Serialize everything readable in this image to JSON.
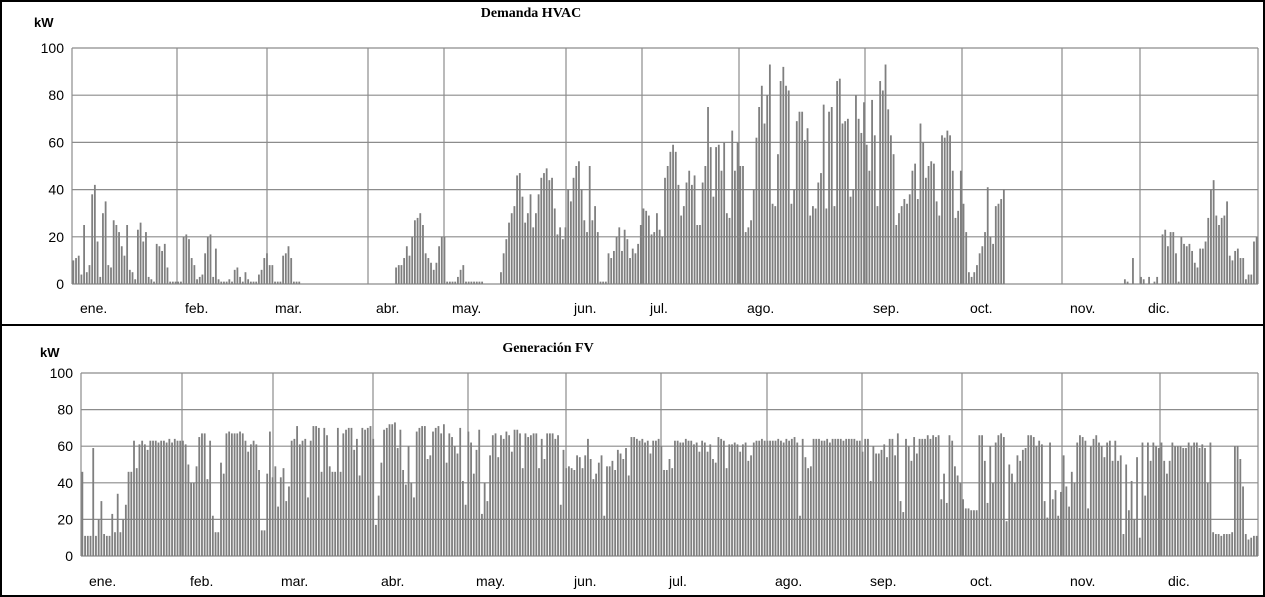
{
  "chart_data": [
    {
      "type": "bar",
      "title": "Demanda HVAC",
      "ylabel": "kW",
      "xlabel": "",
      "ylim": [
        0,
        100
      ],
      "yticks": [
        0,
        20,
        40,
        60,
        80,
        100
      ],
      "months": [
        "ene.",
        "feb.",
        "mar.",
        "abr.",
        "may.",
        "jun.",
        "jul.",
        "ago.",
        "sep.",
        "oct.",
        "nov.",
        "dic."
      ],
      "grid": true,
      "bar_color": "#7f7f7f",
      "x_unit": "day of year (1-365)",
      "values": [
        10,
        11,
        12,
        4,
        25,
        5,
        8,
        38,
        42,
        18,
        3,
        30,
        35,
        8,
        7,
        27,
        25,
        22,
        16,
        12,
        25,
        6,
        5,
        2,
        23,
        26,
        18,
        22,
        3,
        2,
        1,
        17,
        16,
        14,
        17,
        7,
        1,
        1,
        1,
        1,
        1,
        20,
        21,
        19,
        11,
        8,
        2,
        3,
        4,
        13,
        20,
        21,
        3,
        15,
        2,
        1,
        1,
        1,
        2,
        1,
        6,
        7,
        3,
        1,
        5,
        2,
        1,
        1,
        1,
        4,
        6,
        11,
        13,
        8,
        8,
        1,
        1,
        1,
        12,
        13,
        16,
        11,
        1,
        1,
        1,
        0,
        0,
        0,
        0,
        0,
        0,
        0,
        0,
        0,
        0,
        0,
        0,
        0,
        0,
        0,
        0,
        0,
        0,
        0,
        0,
        0,
        0,
        0,
        0,
        0,
        0,
        0,
        0,
        0,
        0,
        0,
        0,
        0,
        0,
        0,
        7,
        8,
        8,
        11,
        16,
        12,
        20,
        27,
        28,
        30,
        25,
        13,
        11,
        9,
        6,
        9,
        16,
        20,
        20,
        1,
        1,
        1,
        1,
        3,
        6,
        8,
        1,
        1,
        1,
        1,
        1,
        1,
        1,
        0,
        0,
        0,
        0,
        0,
        0,
        5,
        13,
        19,
        26,
        30,
        33,
        46,
        47,
        37,
        26,
        30,
        38,
        24,
        30,
        38,
        45,
        47,
        49,
        44,
        45,
        32,
        21,
        24,
        19,
        24,
        40,
        35,
        45,
        50,
        52,
        40,
        27,
        22,
        50,
        27,
        33,
        22,
        1,
        1,
        1,
        13,
        11,
        14,
        20,
        24,
        14,
        23,
        19,
        11,
        15,
        13,
        17,
        25,
        32,
        31,
        29,
        21,
        22,
        30,
        23,
        20,
        45,
        50,
        56,
        59,
        56,
        42,
        29,
        33,
        43,
        48,
        42,
        46,
        25,
        25,
        43,
        50,
        75,
        58,
        37,
        58,
        59,
        48,
        60,
        30,
        28,
        65,
        48,
        60,
        50,
        50,
        22,
        24,
        27,
        40,
        62,
        75,
        84,
        68,
        80,
        93,
        34,
        33,
        55,
        86,
        92,
        84,
        82,
        34,
        40,
        69,
        73,
        73,
        61,
        66,
        29,
        33,
        32,
        43,
        47,
        76,
        32,
        73,
        75,
        33,
        86,
        87,
        68,
        69,
        70,
        37,
        40,
        80,
        70,
        64,
        77,
        59,
        48,
        78,
        63,
        33,
        86,
        82,
        93,
        74,
        63,
        55,
        25,
        30,
        33,
        36,
        34,
        38,
        48,
        51,
        36,
        68,
        60,
        45,
        50,
        52,
        51,
        35,
        29,
        63,
        62,
        65,
        63,
        48,
        28,
        31,
        48,
        34,
        22,
        5,
        3,
        5,
        8,
        13,
        16,
        22,
        41,
        20,
        17,
        33,
        34,
        36,
        40,
        0,
        0,
        0,
        0,
        0,
        0,
        0,
        0,
        0,
        0,
        0,
        0,
        0,
        0,
        0,
        0,
        0,
        0,
        0,
        0,
        0,
        0,
        0,
        0,
        0,
        0,
        0,
        0,
        0,
        0,
        0,
        0,
        0,
        0,
        0,
        0,
        0,
        0,
        0,
        0,
        0,
        0,
        0,
        0,
        2,
        1,
        0,
        11,
        0,
        0,
        3,
        2,
        0,
        3,
        0,
        1,
        3,
        0,
        21,
        23,
        16,
        22,
        22,
        13,
        1,
        20,
        17,
        16,
        17,
        14,
        9,
        7,
        15,
        15,
        18,
        28,
        40,
        44,
        29,
        25,
        28,
        29,
        35,
        12,
        10,
        14,
        15,
        11,
        11,
        2,
        4,
        4,
        18,
        20
      ]
    },
    {
      "type": "bar",
      "title": "Generación FV",
      "ylabel": "kW",
      "xlabel": "",
      "ylim": [
        0,
        100
      ],
      "yticks": [
        0,
        20,
        40,
        60,
        80,
        100
      ],
      "months": [
        "ene.",
        "feb.",
        "mar.",
        "abr.",
        "may.",
        "jun.",
        "jul.",
        "ago.",
        "sep.",
        "oct.",
        "nov.",
        "dic."
      ],
      "grid": true,
      "bar_color": "#7f7f7f",
      "x_unit": "day of year (1-365)",
      "values": [
        46,
        11,
        11,
        11,
        59,
        11,
        20,
        30,
        12,
        11,
        11,
        23,
        13,
        34,
        13,
        20,
        28,
        46,
        46,
        63,
        48,
        61,
        63,
        61,
        58,
        63,
        63,
        63,
        62,
        63,
        63,
        62,
        64,
        62,
        64,
        63,
        63,
        63,
        61,
        50,
        40,
        40,
        49,
        65,
        67,
        67,
        42,
        63,
        22,
        13,
        13,
        51,
        45,
        67,
        68,
        67,
        67,
        67,
        68,
        67,
        63,
        57,
        61,
        63,
        61,
        47,
        14,
        14,
        45,
        68,
        43,
        49,
        27,
        43,
        48,
        30,
        38,
        63,
        64,
        71,
        61,
        63,
        64,
        32,
        63,
        71,
        71,
        70,
        46,
        70,
        66,
        49,
        46,
        46,
        70,
        46,
        67,
        69,
        70,
        70,
        58,
        64,
        44,
        70,
        69,
        70,
        71,
        64,
        17,
        33,
        51,
        69,
        70,
        72,
        72,
        73,
        59,
        69,
        47,
        39,
        60,
        40,
        32,
        68,
        70,
        71,
        71,
        53,
        55,
        68,
        70,
        71,
        67,
        72,
        51,
        67,
        65,
        60,
        56,
        70,
        41,
        28,
        68,
        62,
        45,
        58,
        69,
        23,
        40,
        30,
        55,
        66,
        67,
        54,
        66,
        64,
        68,
        66,
        57,
        69,
        69,
        67,
        48,
        67,
        65,
        66,
        67,
        67,
        48,
        64,
        53,
        67,
        67,
        67,
        64,
        66,
        28,
        58,
        48,
        49,
        48,
        47,
        55,
        54,
        48,
        55,
        64,
        53,
        42,
        45,
        51,
        55,
        22,
        49,
        49,
        52,
        47,
        58,
        56,
        53,
        59,
        44,
        65,
        65,
        64,
        63,
        64,
        62,
        63,
        56,
        63,
        63,
        64,
        60,
        47,
        47,
        53,
        48,
        63,
        63,
        62,
        62,
        64,
        63,
        63,
        61,
        62,
        57,
        63,
        62,
        57,
        61,
        53,
        51,
        65,
        64,
        63,
        48,
        61,
        61,
        62,
        61,
        57,
        61,
        62,
        52,
        55,
        62,
        63,
        63,
        64,
        63,
        63,
        63,
        63,
        63,
        64,
        63,
        62,
        64,
        63,
        64,
        65,
        62,
        22,
        64,
        54,
        48,
        49,
        64,
        64,
        64,
        63,
        63,
        64,
        62,
        64,
        64,
        64,
        64,
        63,
        64,
        64,
        64,
        64,
        63,
        63,
        57,
        64,
        64,
        41,
        60,
        56,
        56,
        58,
        61,
        54,
        64,
        64,
        55,
        67,
        30,
        24,
        64,
        60,
        52,
        65,
        56,
        64,
        64,
        64,
        66,
        64,
        66,
        65,
        66,
        31,
        45,
        29,
        66,
        63,
        49,
        44,
        40,
        31,
        26,
        26,
        25,
        25,
        25,
        66,
        66,
        52,
        29,
        60,
        40,
        62,
        66,
        67,
        65,
        19,
        50,
        45,
        40,
        55,
        52,
        58,
        59,
        66,
        66,
        65,
        60,
        63,
        61,
        30,
        21,
        62,
        31,
        36,
        22,
        35,
        55,
        38,
        27,
        46,
        40,
        62,
        66,
        65,
        63,
        26,
        60,
        64,
        66,
        62,
        60,
        54,
        62,
        63,
        52,
        63,
        52,
        55,
        12,
        50,
        25,
        41,
        20,
        54,
        10,
        62,
        33,
        62,
        52,
        62,
        60,
        59,
        62,
        52,
        45,
        52,
        62,
        60,
        60,
        60,
        59,
        59,
        62,
        60,
        62,
        62,
        59,
        61,
        59,
        40,
        62,
        13,
        12,
        12,
        11,
        12,
        12,
        12,
        13,
        60,
        60,
        53,
        38,
        12,
        9,
        10,
        11,
        11
      ]
    }
  ]
}
